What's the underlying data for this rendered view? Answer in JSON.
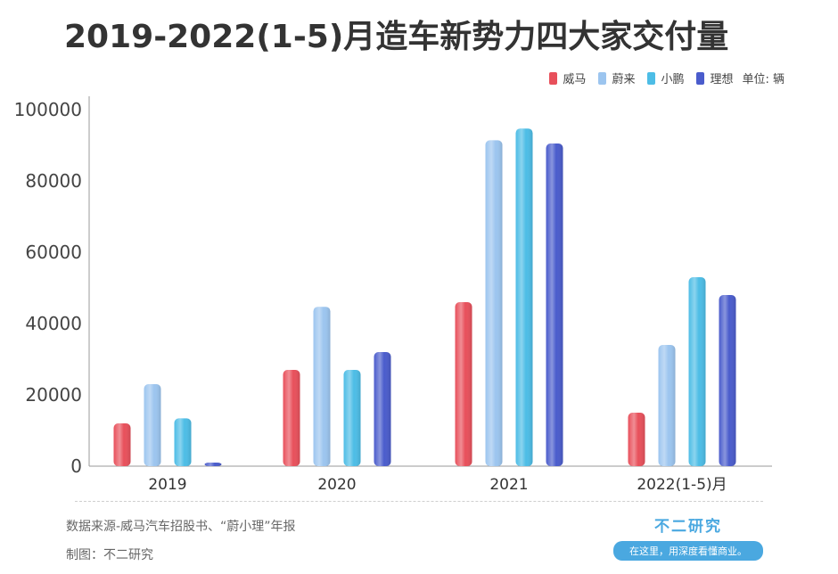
{
  "title": "2019-2022(1-5)月造车新势力四大家交付量",
  "legend": {
    "unit": "单位: 辆"
  },
  "footer": {
    "source": "数据来源-威马汽车招股书、“蔚小理”年报",
    "credit": "制图：不二研究"
  },
  "brand": {
    "name": "不二研究",
    "slogan": "在这里，用深度看懂商业。"
  },
  "chart_data": {
    "type": "bar",
    "categories": [
      "2019",
      "2020",
      "2021",
      "2022(1-5)月"
    ],
    "series": [
      {
        "name": "威马",
        "color": "#e8505b",
        "values": [
          12000,
          27000,
          46000,
          15000
        ]
      },
      {
        "name": "蔚来",
        "color": "#9cc5ef",
        "values": [
          23000,
          44700,
          91400,
          34000
        ]
      },
      {
        "name": "小鹏",
        "color": "#4dbde6",
        "values": [
          13400,
          27000,
          94700,
          53000
        ]
      },
      {
        "name": "理想",
        "color": "#4a5ccc",
        "values": [
          1000,
          32000,
          90500,
          48000
        ]
      }
    ],
    "yticks": [
      "0",
      "20000",
      "40000",
      "60000",
      "80000",
      "100000"
    ],
    "ylim": [
      0,
      100000
    ],
    "grid": false,
    "legend_position": "top-right"
  }
}
